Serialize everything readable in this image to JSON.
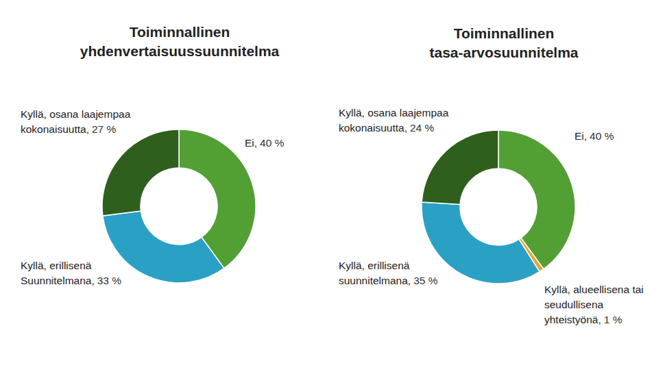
{
  "chart_data": [
    {
      "type": "donut",
      "title": "Toiminnallinen\nyhdenvertaisuussuunnitelma",
      "categories": [
        "Ei,",
        "Kyllä, erillisenä\nSuunnitelmana,",
        "Kyllä, osana laajempaa\nkokonaisuutta,"
      ],
      "values": [
        40,
        33,
        27
      ],
      "value_labels": [
        "40 %",
        "33 %",
        "27 %"
      ],
      "colors": [
        "#52a034",
        "#2aa1c4",
        "#2f5f1d"
      ],
      "data_labels": true
    },
    {
      "type": "donut",
      "title": "Toiminnallinen\ntasa-arvosuunnitelma",
      "categories": [
        "Ei,",
        "Kyllä, alueellisena tai\nseudullisena\nyhteistyönä,",
        "Kyllä, erillisenä\nsuunnitelmana,",
        "Kyllä, osana laajempaa\nkokonaisuutta,"
      ],
      "values": [
        40,
        1,
        35,
        24
      ],
      "value_labels": [
        "40 %",
        "1 %",
        "35 %",
        "24 %"
      ],
      "colors": [
        "#52a034",
        "#e8a33a",
        "#2aa1c4",
        "#2f5f1d"
      ],
      "data_labels": true
    }
  ]
}
